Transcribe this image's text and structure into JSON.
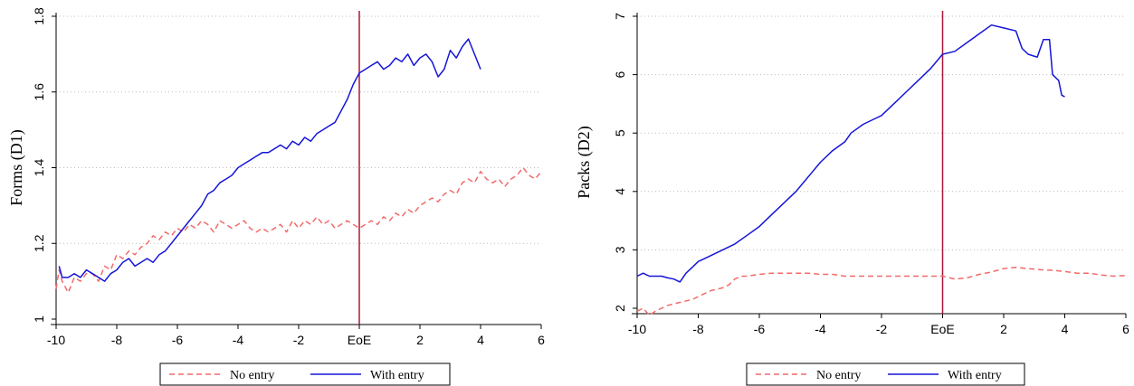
{
  "colors": {
    "no_entry": "#f26a6a",
    "with_entry": "#1515d8",
    "vline": "#a8193a",
    "grid": "#bbbbbb"
  },
  "chart_data": [
    {
      "type": "line",
      "title": "",
      "xlabel": "",
      "ylabel": "Forms (D1)",
      "xlim": [
        -10,
        6
      ],
      "ylim": [
        1,
        1.8
      ],
      "x_ticks": [
        -10,
        -8,
        -6,
        -4,
        -2,
        0,
        2,
        4,
        6
      ],
      "x_tick_labels": [
        "-10",
        "-8",
        "-6",
        "-4",
        "-2",
        "EoE",
        "2",
        "4",
        "6"
      ],
      "y_ticks": [
        1,
        1.2,
        1.4,
        1.6,
        1.8
      ],
      "y_tick_labels": [
        "1",
        "1.2",
        "1.4",
        "1.6",
        "1.8"
      ],
      "grid": "horizontal dotted",
      "vline_x": 0,
      "legend_position": "bottom",
      "series": [
        {
          "name": "No entry",
          "style": "dashed",
          "color": "#f26a6a",
          "points": [
            [
              -10,
              1.08
            ],
            [
              -9.9,
              1.13
            ],
            [
              -9.8,
              1.1
            ],
            [
              -9.6,
              1.07
            ],
            [
              -9.4,
              1.11
            ],
            [
              -9.2,
              1.1
            ],
            [
              -9,
              1.12
            ],
            [
              -8.8,
              1.12
            ],
            [
              -8.6,
              1.1
            ],
            [
              -8.4,
              1.14
            ],
            [
              -8.2,
              1.13
            ],
            [
              -8,
              1.17
            ],
            [
              -7.8,
              1.16
            ],
            [
              -7.6,
              1.18
            ],
            [
              -7.4,
              1.17
            ],
            [
              -7.2,
              1.19
            ],
            [
              -7,
              1.2
            ],
            [
              -6.8,
              1.22
            ],
            [
              -6.6,
              1.21
            ],
            [
              -6.4,
              1.23
            ],
            [
              -6.2,
              1.22
            ],
            [
              -6,
              1.24
            ],
            [
              -5.8,
              1.23
            ],
            [
              -5.6,
              1.25
            ],
            [
              -5.4,
              1.24
            ],
            [
              -5.2,
              1.26
            ],
            [
              -5,
              1.25
            ],
            [
              -4.8,
              1.23
            ],
            [
              -4.6,
              1.26
            ],
            [
              -4.4,
              1.25
            ],
            [
              -4.2,
              1.24
            ],
            [
              -4,
              1.25
            ],
            [
              -3.8,
              1.26
            ],
            [
              -3.6,
              1.24
            ],
            [
              -3.4,
              1.23
            ],
            [
              -3.2,
              1.24
            ],
            [
              -3,
              1.23
            ],
            [
              -2.8,
              1.24
            ],
            [
              -2.6,
              1.25
            ],
            [
              -2.4,
              1.23
            ],
            [
              -2.2,
              1.26
            ],
            [
              -2,
              1.24
            ],
            [
              -1.8,
              1.26
            ],
            [
              -1.6,
              1.25
            ],
            [
              -1.4,
              1.27
            ],
            [
              -1.2,
              1.25
            ],
            [
              -1,
              1.26
            ],
            [
              -0.8,
              1.24
            ],
            [
              -0.6,
              1.25
            ],
            [
              -0.4,
              1.26
            ],
            [
              -0.2,
              1.25
            ],
            [
              0,
              1.24
            ],
            [
              0.2,
              1.25
            ],
            [
              0.4,
              1.26
            ],
            [
              0.6,
              1.25
            ],
            [
              0.8,
              1.27
            ],
            [
              1,
              1.26
            ],
            [
              1.2,
              1.28
            ],
            [
              1.4,
              1.27
            ],
            [
              1.6,
              1.29
            ],
            [
              1.8,
              1.28
            ],
            [
              2,
              1.3
            ],
            [
              2.2,
              1.31
            ],
            [
              2.4,
              1.32
            ],
            [
              2.6,
              1.31
            ],
            [
              2.8,
              1.33
            ],
            [
              3,
              1.34
            ],
            [
              3.2,
              1.33
            ],
            [
              3.4,
              1.36
            ],
            [
              3.6,
              1.37
            ],
            [
              3.8,
              1.36
            ],
            [
              4,
              1.39
            ],
            [
              4.2,
              1.37
            ],
            [
              4.4,
              1.36
            ],
            [
              4.6,
              1.37
            ],
            [
              4.8,
              1.35
            ],
            [
              5,
              1.37
            ],
            [
              5.2,
              1.38
            ],
            [
              5.4,
              1.4
            ],
            [
              5.6,
              1.38
            ],
            [
              5.8,
              1.37
            ],
            [
              6,
              1.39
            ]
          ]
        },
        {
          "name": "With entry",
          "style": "solid",
          "color": "#1515d8",
          "points": [
            [
              -9.9,
              1.14
            ],
            [
              -9.8,
              1.11
            ],
            [
              -9.6,
              1.11
            ],
            [
              -9.4,
              1.12
            ],
            [
              -9.2,
              1.11
            ],
            [
              -9,
              1.13
            ],
            [
              -8.8,
              1.12
            ],
            [
              -8.6,
              1.11
            ],
            [
              -8.4,
              1.1
            ],
            [
              -8.2,
              1.12
            ],
            [
              -8,
              1.13
            ],
            [
              -7.8,
              1.15
            ],
            [
              -7.6,
              1.16
            ],
            [
              -7.4,
              1.14
            ],
            [
              -7.2,
              1.15
            ],
            [
              -7,
              1.16
            ],
            [
              -6.8,
              1.15
            ],
            [
              -6.6,
              1.17
            ],
            [
              -6.4,
              1.18
            ],
            [
              -6.2,
              1.2
            ],
            [
              -6,
              1.22
            ],
            [
              -5.8,
              1.24
            ],
            [
              -5.6,
              1.26
            ],
            [
              -5.4,
              1.28
            ],
            [
              -5.2,
              1.3
            ],
            [
              -5,
              1.33
            ],
            [
              -4.8,
              1.34
            ],
            [
              -4.6,
              1.36
            ],
            [
              -4.4,
              1.37
            ],
            [
              -4.2,
              1.38
            ],
            [
              -4,
              1.4
            ],
            [
              -3.8,
              1.41
            ],
            [
              -3.6,
              1.42
            ],
            [
              -3.4,
              1.43
            ],
            [
              -3.2,
              1.44
            ],
            [
              -3,
              1.44
            ],
            [
              -2.8,
              1.45
            ],
            [
              -2.6,
              1.46
            ],
            [
              -2.4,
              1.45
            ],
            [
              -2.2,
              1.47
            ],
            [
              -2,
              1.46
            ],
            [
              -1.8,
              1.48
            ],
            [
              -1.6,
              1.47
            ],
            [
              -1.4,
              1.49
            ],
            [
              -1.2,
              1.5
            ],
            [
              -1,
              1.51
            ],
            [
              -0.8,
              1.52
            ],
            [
              -0.6,
              1.55
            ],
            [
              -0.4,
              1.58
            ],
            [
              -0.2,
              1.62
            ],
            [
              0,
              1.65
            ],
            [
              0.2,
              1.66
            ],
            [
              0.4,
              1.67
            ],
            [
              0.6,
              1.68
            ],
            [
              0.8,
              1.66
            ],
            [
              1,
              1.67
            ],
            [
              1.2,
              1.69
            ],
            [
              1.4,
              1.68
            ],
            [
              1.6,
              1.7
            ],
            [
              1.8,
              1.67
            ],
            [
              2,
              1.69
            ],
            [
              2.2,
              1.7
            ],
            [
              2.4,
              1.68
            ],
            [
              2.6,
              1.64
            ],
            [
              2.8,
              1.66
            ],
            [
              3,
              1.71
            ],
            [
              3.2,
              1.69
            ],
            [
              3.4,
              1.72
            ],
            [
              3.6,
              1.74
            ],
            [
              3.8,
              1.7
            ],
            [
              4,
              1.66
            ]
          ]
        }
      ]
    },
    {
      "type": "line",
      "title": "",
      "xlabel": "",
      "ylabel": "Packs (D2)",
      "xlim": [
        -10,
        6
      ],
      "ylim": [
        2,
        7
      ],
      "x_ticks": [
        -10,
        -8,
        -6,
        -4,
        -2,
        0,
        2,
        4,
        6
      ],
      "x_tick_labels": [
        "-10",
        "-8",
        "-6",
        "-4",
        "-2",
        "EoE",
        "2",
        "4",
        "6"
      ],
      "y_ticks": [
        2,
        3,
        4,
        5,
        6,
        7
      ],
      "y_tick_labels": [
        "2",
        "3",
        "4",
        "5",
        "6",
        "7"
      ],
      "grid": "horizontal dotted",
      "vline_x": 0,
      "legend_position": "bottom",
      "series": [
        {
          "name": "No entry",
          "style": "dashed",
          "color": "#f26a6a",
          "points": [
            [
              -10,
              1.95
            ],
            [
              -9.8,
              2
            ],
            [
              -9.6,
              1.88
            ],
            [
              -9.4,
              1.95
            ],
            [
              -9.2,
              2.0
            ],
            [
              -9,
              2.05
            ],
            [
              -8.6,
              2.1
            ],
            [
              -8.2,
              2.15
            ],
            [
              -8,
              2.2
            ],
            [
              -7.6,
              2.3
            ],
            [
              -7.2,
              2.35
            ],
            [
              -7,
              2.4
            ],
            [
              -6.8,
              2.5
            ],
            [
              -6.6,
              2.55
            ],
            [
              -6.4,
              2.55
            ],
            [
              -6,
              2.58
            ],
            [
              -5.6,
              2.6
            ],
            [
              -5.2,
              2.6
            ],
            [
              -4.8,
              2.6
            ],
            [
              -4.4,
              2.6
            ],
            [
              -4,
              2.58
            ],
            [
              -3.6,
              2.58
            ],
            [
              -3.2,
              2.55
            ],
            [
              -2.8,
              2.55
            ],
            [
              -2.4,
              2.55
            ],
            [
              -2,
              2.55
            ],
            [
              -1.6,
              2.55
            ],
            [
              -1.2,
              2.55
            ],
            [
              -0.8,
              2.55
            ],
            [
              -0.4,
              2.55
            ],
            [
              0,
              2.55
            ],
            [
              0.4,
              2.5
            ],
            [
              0.8,
              2.52
            ],
            [
              1.2,
              2.58
            ],
            [
              1.6,
              2.62
            ],
            [
              2,
              2.68
            ],
            [
              2.4,
              2.7
            ],
            [
              2.8,
              2.68
            ],
            [
              3.2,
              2.66
            ],
            [
              3.6,
              2.65
            ],
            [
              4,
              2.63
            ],
            [
              4.4,
              2.6
            ],
            [
              4.8,
              2.6
            ],
            [
              5.2,
              2.57
            ],
            [
              5.6,
              2.55
            ],
            [
              6,
              2.56
            ]
          ]
        },
        {
          "name": "With entry",
          "style": "solid",
          "color": "#1515d8",
          "points": [
            [
              -10,
              2.55
            ],
            [
              -9.8,
              2.6
            ],
            [
              -9.6,
              2.55
            ],
            [
              -9.4,
              2.55
            ],
            [
              -9.2,
              2.55
            ],
            [
              -9,
              2.52
            ],
            [
              -8.8,
              2.5
            ],
            [
              -8.6,
              2.45
            ],
            [
              -8.4,
              2.6
            ],
            [
              -8.2,
              2.7
            ],
            [
              -8,
              2.8
            ],
            [
              -7.6,
              2.9
            ],
            [
              -7.2,
              3.0
            ],
            [
              -6.8,
              3.1
            ],
            [
              -6.4,
              3.25
            ],
            [
              -6,
              3.4
            ],
            [
              -5.6,
              3.6
            ],
            [
              -5.2,
              3.8
            ],
            [
              -4.8,
              4.0
            ],
            [
              -4.4,
              4.25
            ],
            [
              -4,
              4.5
            ],
            [
              -3.6,
              4.7
            ],
            [
              -3.2,
              4.85
            ],
            [
              -3,
              5.0
            ],
            [
              -2.6,
              5.15
            ],
            [
              -2.2,
              5.25
            ],
            [
              -2,
              5.3
            ],
            [
              -1.6,
              5.5
            ],
            [
              -1.2,
              5.7
            ],
            [
              -0.8,
              5.9
            ],
            [
              -0.4,
              6.1
            ],
            [
              0,
              6.35
            ],
            [
              0.4,
              6.4
            ],
            [
              0.8,
              6.55
            ],
            [
              1.2,
              6.7
            ],
            [
              1.6,
              6.85
            ],
            [
              2,
              6.8
            ],
            [
              2.4,
              6.75
            ],
            [
              2.6,
              6.45
            ],
            [
              2.8,
              6.35
            ],
            [
              3.1,
              6.3
            ],
            [
              3.3,
              6.6
            ],
            [
              3.5,
              6.6
            ],
            [
              3.6,
              6.0
            ],
            [
              3.8,
              5.9
            ],
            [
              3.9,
              5.65
            ],
            [
              4,
              5.62
            ]
          ]
        }
      ]
    }
  ]
}
